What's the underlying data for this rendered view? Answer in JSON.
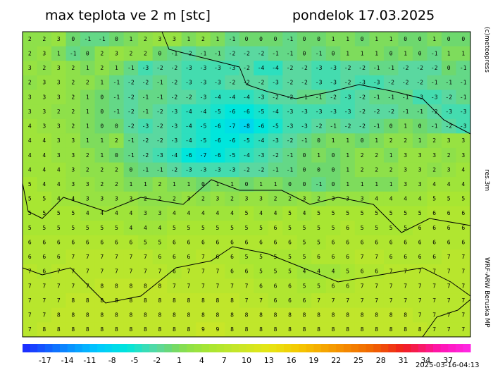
{
  "header": {
    "title": "max teplota ve 2 m [stc]",
    "date": "pondelok 17.03.2025"
  },
  "side": {
    "copyright": "(c)meteopress",
    "resolution": "res.3m",
    "model": "WRF-ARW Beruska MP"
  },
  "timestamp": "2025-03-16-04:13",
  "colorbar": {
    "min": -20,
    "max": 40,
    "ticks": [
      -17,
      -14,
      -11,
      -8,
      -5,
      -2,
      1,
      4,
      7,
      10,
      13,
      16,
      19,
      22,
      25,
      28,
      31,
      34,
      37
    ],
    "stops": [
      [
        -20,
        "#1e28ff"
      ],
      [
        -14,
        "#0a8cff"
      ],
      [
        -10,
        "#00c8ff"
      ],
      [
        -6,
        "#00e6dc"
      ],
      [
        -2,
        "#5ad8a0"
      ],
      [
        0,
        "#6ed86e"
      ],
      [
        2,
        "#8ee04a"
      ],
      [
        5,
        "#a8e632"
      ],
      [
        9,
        "#c8e628"
      ],
      [
        13,
        "#e6e614"
      ],
      [
        17,
        "#f5c800"
      ],
      [
        22,
        "#f59600"
      ],
      [
        27,
        "#f06400"
      ],
      [
        31,
        "#f01e1e"
      ],
      [
        36,
        "#ff14b4"
      ],
      [
        40,
        "#ff28e6"
      ]
    ]
  },
  "grid": {
    "rows": [
      [
        2,
        2,
        3,
        0,
        -1,
        -1,
        0,
        1,
        2,
        3,
        3,
        1,
        2,
        1,
        -1,
        0,
        0,
        0,
        -1,
        0,
        0,
        1,
        1,
        0,
        1,
        1,
        0,
        0,
        1,
        0,
        0
      ],
      [
        2,
        3,
        1,
        -1,
        0,
        2,
        3,
        2,
        2,
        0,
        -1,
        -2,
        -1,
        -1,
        -2,
        -2,
        -2,
        -1,
        -1,
        0,
        -1,
        0,
        1,
        1,
        1,
        0,
        1,
        0,
        -1,
        1,
        1
      ],
      [
        3,
        2,
        3,
        2,
        1,
        2,
        1,
        -1,
        -3,
        -2,
        -2,
        -3,
        -3,
        -3,
        -3,
        -2,
        -4,
        -4,
        -2,
        -2,
        -3,
        -3,
        -2,
        -2,
        -1,
        -1,
        -2,
        -2,
        -2,
        0,
        -1
      ],
      [
        2,
        3,
        3,
        2,
        2,
        1,
        -1,
        -2,
        -2,
        -1,
        -2,
        -3,
        -3,
        -3,
        -2,
        -2,
        -2,
        -3,
        -2,
        -2,
        -3,
        -3,
        -2,
        -3,
        -3,
        -2,
        -2,
        -2,
        -1,
        -1,
        -1
      ],
      [
        3,
        3,
        3,
        2,
        1,
        0,
        -1,
        -2,
        -1,
        -1,
        -2,
        -2,
        -3,
        -4,
        -4,
        -4,
        -3,
        -2,
        -2,
        -1,
        -1,
        -2,
        -3,
        -2,
        -1,
        -1,
        -1,
        -3,
        -3,
        -2,
        -1
      ],
      [
        3,
        3,
        2,
        2,
        1,
        0,
        -1,
        -2,
        -1,
        -2,
        -3,
        -4,
        -4,
        -5,
        -6,
        -6,
        -5,
        -4,
        -3,
        -3,
        -3,
        -3,
        -3,
        -2,
        -2,
        -2,
        -1,
        -1,
        -2,
        -3,
        -3
      ],
      [
        4,
        3,
        3,
        2,
        1,
        0,
        0,
        -2,
        -3,
        -2,
        -3,
        -4,
        -5,
        -6,
        -7,
        -8,
        -6,
        -5,
        -3,
        -3,
        -2,
        -1,
        -2,
        -2,
        -1,
        0,
        1,
        0,
        -1,
        -2,
        -3
      ],
      [
        4,
        4,
        3,
        3,
        1,
        1,
        2,
        -1,
        -2,
        -2,
        -3,
        -4,
        -5,
        -6,
        -6,
        -5,
        -4,
        -3,
        -2,
        -1,
        0,
        1,
        1,
        0,
        1,
        2,
        2,
        1,
        2,
        3,
        3
      ],
      [
        4,
        4,
        3,
        3,
        2,
        1,
        0,
        -1,
        -2,
        -3,
        -4,
        -6,
        -7,
        -6,
        -5,
        -4,
        -3,
        -2,
        -1,
        0,
        1,
        0,
        1,
        2,
        2,
        1,
        3,
        3,
        3,
        2,
        3
      ],
      [
        4,
        4,
        4,
        3,
        2,
        2,
        2,
        0,
        -1,
        -1,
        -2,
        -3,
        -3,
        -3,
        -3,
        -2,
        -2,
        -1,
        -1,
        0,
        0,
        0,
        1,
        2,
        2,
        2,
        3,
        3,
        2,
        3,
        4
      ],
      [
        5,
        4,
        4,
        3,
        3,
        2,
        2,
        1,
        1,
        2,
        1,
        1,
        0,
        1,
        1,
        0,
        1,
        1,
        0,
        0,
        -1,
        0,
        1,
        1,
        1,
        1,
        3,
        3,
        4,
        4,
        4
      ],
      [
        5,
        5,
        4,
        4,
        3,
        3,
        3,
        3,
        2,
        2,
        2,
        3,
        2,
        3,
        2,
        3,
        3,
        2,
        2,
        3,
        2,
        3,
        3,
        3,
        4,
        4,
        4,
        4,
        5,
        5,
        5
      ],
      [
        5,
        5,
        5,
        5,
        4,
        4,
        4,
        4,
        3,
        3,
        4,
        4,
        4,
        4,
        4,
        5,
        4,
        4,
        5,
        4,
        5,
        5,
        5,
        5,
        5,
        5,
        5,
        5,
        6,
        6,
        6
      ],
      [
        5,
        5,
        5,
        5,
        5,
        5,
        5,
        4,
        4,
        4,
        5,
        5,
        5,
        5,
        5,
        5,
        5,
        6,
        5,
        5,
        5,
        5,
        6,
        5,
        5,
        5,
        5,
        6,
        6,
        6,
        6
      ],
      [
        6,
        6,
        6,
        6,
        6,
        6,
        6,
        6,
        5,
        5,
        6,
        6,
        6,
        6,
        6,
        6,
        6,
        6,
        6,
        5,
        5,
        6,
        6,
        6,
        6,
        6,
        6,
        6,
        6,
        6,
        6
      ],
      [
        6,
        6,
        6,
        7,
        7,
        7,
        7,
        7,
        7,
        6,
        6,
        6,
        7,
        6,
        6,
        5,
        5,
        5,
        5,
        5,
        6,
        6,
        6,
        7,
        7,
        6,
        6,
        6,
        6,
        7,
        7
      ],
      [
        7,
        6,
        7,
        7,
        7,
        7,
        7,
        7,
        7,
        7,
        6,
        7,
        7,
        7,
        6,
        6,
        5,
        5,
        5,
        4,
        4,
        4,
        5,
        6,
        6,
        7,
        7,
        7,
        7,
        7,
        7
      ],
      [
        7,
        7,
        7,
        7,
        7,
        8,
        8,
        8,
        8,
        8,
        7,
        7,
        7,
        7,
        7,
        7,
        6,
        6,
        6,
        5,
        5,
        6,
        6,
        7,
        7,
        7,
        7,
        7,
        7,
        7,
        7
      ],
      [
        7,
        7,
        7,
        8,
        8,
        8,
        8,
        8,
        8,
        8,
        8,
        8,
        8,
        8,
        8,
        7,
        7,
        6,
        6,
        6,
        7,
        7,
        7,
        7,
        7,
        7,
        7,
        7,
        7,
        7,
        7
      ],
      [
        7,
        7,
        8,
        8,
        8,
        8,
        8,
        8,
        8,
        8,
        8,
        8,
        8,
        8,
        8,
        8,
        8,
        8,
        8,
        8,
        8,
        8,
        8,
        8,
        8,
        8,
        8,
        7,
        7,
        7,
        7
      ],
      [
        7,
        8,
        8,
        8,
        8,
        8,
        8,
        8,
        8,
        8,
        8,
        8,
        9,
        9,
        8,
        8,
        8,
        8,
        8,
        8,
        8,
        8,
        8,
        8,
        8,
        8,
        8,
        8,
        7,
        7,
        7
      ]
    ]
  }
}
